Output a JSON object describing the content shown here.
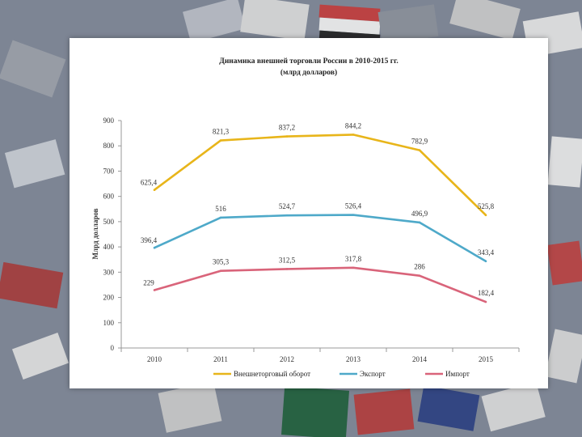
{
  "chart_data": {
    "type": "line",
    "title_line1": "Динамика внешней торговли России в 2010-2015 гг.",
    "title_line2": "(млрд долларов)",
    "ylabel": "Млрд долларов",
    "xlabel": "",
    "categories": [
      "2010",
      "2011",
      "2012",
      "2013",
      "2014",
      "2015"
    ],
    "ylim": [
      0,
      900
    ],
    "yticks": [
      0,
      100,
      200,
      300,
      400,
      500,
      600,
      700,
      800,
      900
    ],
    "grid": false,
    "legend_position": "bottom",
    "series": [
      {
        "name": "Внешнеторговый оборот",
        "color": "#e8b51a",
        "values": [
          625.4,
          821.3,
          837.2,
          844.2,
          782.9,
          525.8
        ],
        "labels": [
          "625,4",
          "821,3",
          "837,2",
          "844,2",
          "782,9",
          "525,8"
        ]
      },
      {
        "name": "Экспорт",
        "color": "#4ea9c9",
        "values": [
          396.4,
          516,
          524.7,
          526.4,
          496.9,
          343.4
        ],
        "labels": [
          "396,4",
          "516",
          "524,7",
          "526,4",
          "496,9",
          "343,4"
        ]
      },
      {
        "name": "Импорт",
        "color": "#d9647a",
        "values": [
          229,
          305.3,
          312.5,
          317.8,
          286,
          182.4
        ],
        "labels": [
          "229",
          "305,3",
          "312,5",
          "317,8",
          "286",
          "182,4"
        ]
      }
    ]
  }
}
